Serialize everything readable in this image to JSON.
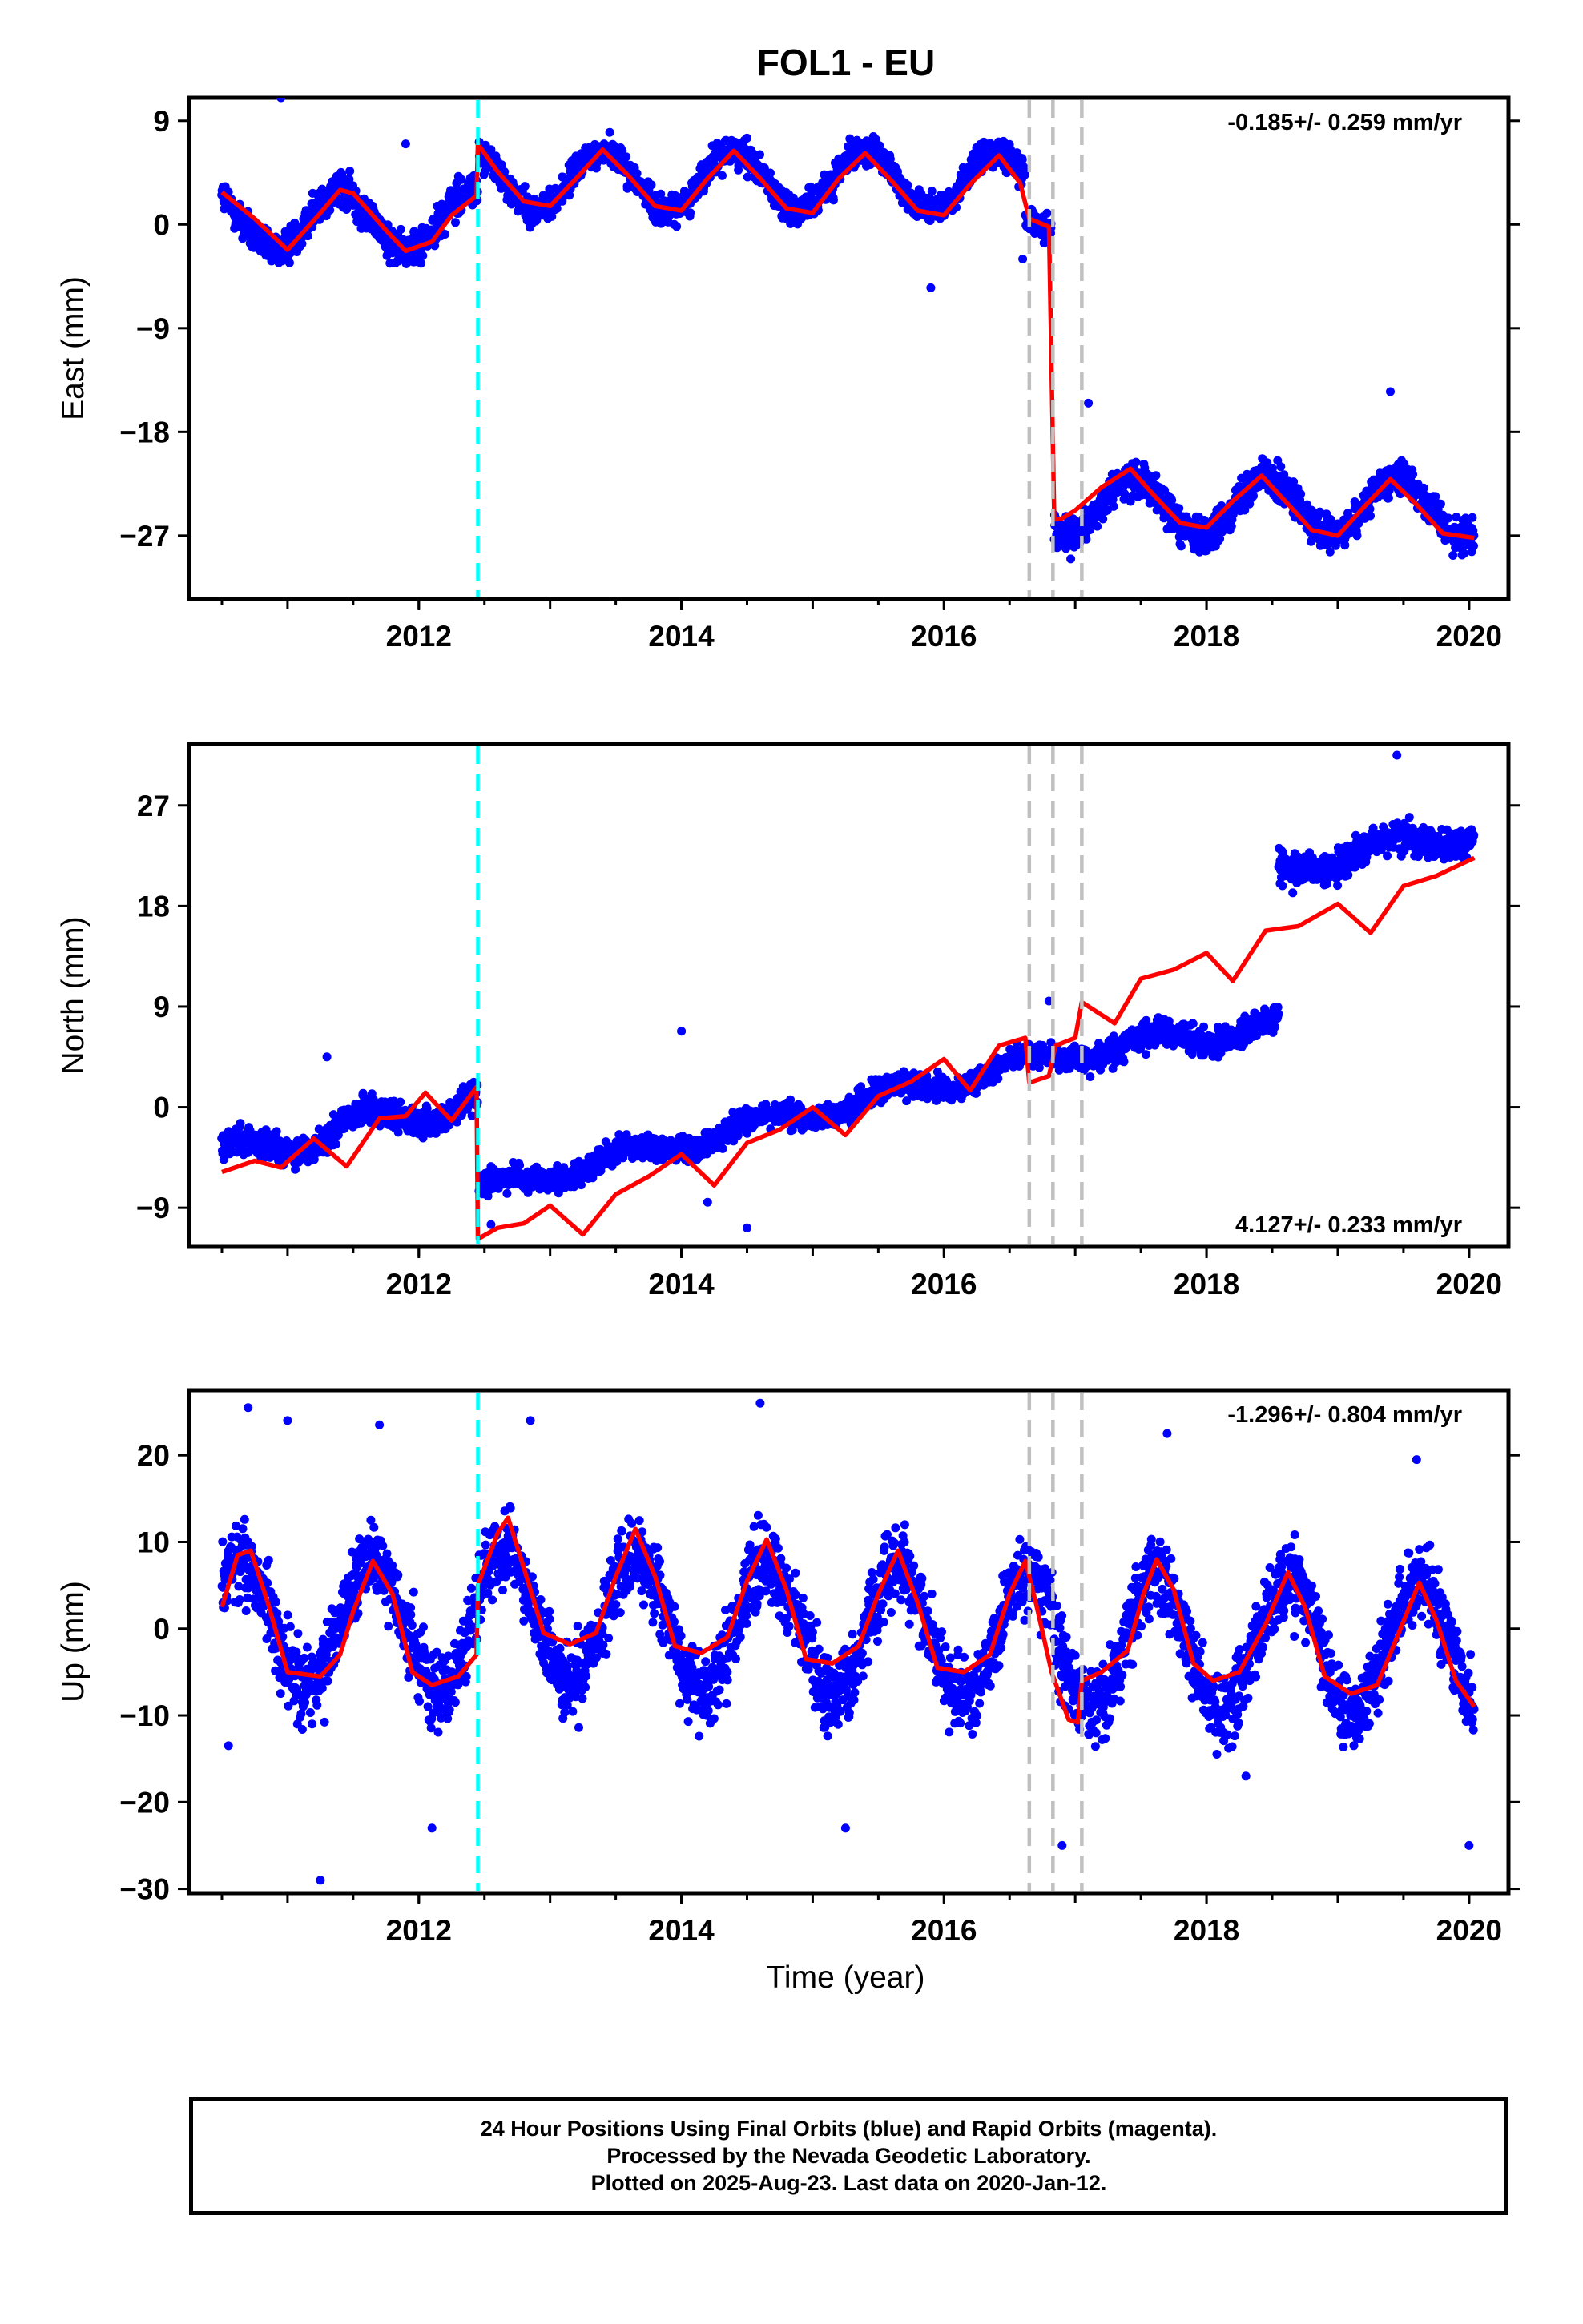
{
  "title": "FOL1 - EU",
  "colors": {
    "points": "#0000ff",
    "model": "#ff0000",
    "antenna_change": "#00ffff",
    "other_event": "#c0c0c0"
  },
  "footer": {
    "line1": "24 Hour Positions Using Final Orbits (blue) and Rapid Orbits (magenta).",
    "line2": "Processed by the Nevada Geodetic Laboratory.",
    "line3": "Plotted on 2025-Aug-23. Last data on 2020-Jan-12."
  },
  "chart_data": [
    {
      "type": "scatter",
      "ylabel": "East (mm)",
      "xlabel": "",
      "xlim": [
        2010.25,
        2020.3
      ],
      "ylim": [
        -32.5,
        11
      ],
      "yticks": [
        -27,
        -18,
        -9,
        0,
        9
      ],
      "xticks": [
        2012,
        2014,
        2016,
        2018,
        2020
      ],
      "rate_label": "-0.185+/- 0.259 mm/yr",
      "rate_position": "top-right",
      "events": [
        {
          "x": 2012.45,
          "kind": "antenna_change"
        },
        {
          "x": 2016.65,
          "kind": "other_event"
        },
        {
          "x": 2016.83,
          "kind": "other_event"
        },
        {
          "x": 2017.05,
          "kind": "other_event"
        }
      ],
      "series": [
        {
          "name": "Final Orbits",
          "kind": "points",
          "segments": [
            {
              "x0": 2010.5,
              "x1": 2012.45,
              "base": 0.3,
              "rate": 0.0,
              "amp": 2.6,
              "phase": 2011.4,
              "noise": 1.6
            },
            {
              "x0": 2012.46,
              "x1": 2016.62,
              "base": 3.8,
              "rate": 0.0,
              "amp": 2.6,
              "phase": 2013.4,
              "noise": 1.3
            },
            {
              "x0": 2016.62,
              "x1": 2016.82,
              "base": 0.2,
              "rate": 0.0,
              "amp": 0.5,
              "phase": 2016.4,
              "noise": 1.2
            },
            {
              "x0": 2016.84,
              "x1": 2020.04,
              "base": -24.5,
              "rate": 0.0,
              "amp": 2.6,
              "phase": 2017.45,
              "noise": 1.5
            }
          ],
          "outliers": [
            [
              2010.95,
              11.0
            ],
            [
              2011.9,
              7.0
            ],
            [
              2014.5,
              7.5
            ],
            [
              2015.9,
              -5.5
            ],
            [
              2017.1,
              -15.5
            ],
            [
              2019.4,
              -14.5
            ],
            [
              2016.6,
              -3.0
            ]
          ]
        },
        {
          "name": "Model",
          "kind": "line",
          "points": [
            [
              2010.5,
              2.8
            ],
            [
              2010.75,
              0.5
            ],
            [
              2011.0,
              -2.2
            ],
            [
              2011.25,
              1.0
            ],
            [
              2011.4,
              3.0
            ],
            [
              2011.5,
              2.7
            ],
            [
              2011.75,
              -0.5
            ],
            [
              2011.9,
              -2.3
            ],
            [
              2012.1,
              -1.5
            ],
            [
              2012.25,
              0.8
            ],
            [
              2012.44,
              2.5
            ],
            [
              2012.45,
              7.0
            ],
            [
              2012.6,
              4.6
            ],
            [
              2012.8,
              2.0
            ],
            [
              2013.0,
              1.6
            ],
            [
              2013.2,
              4.0
            ],
            [
              2013.4,
              6.5
            ],
            [
              2013.6,
              4.2
            ],
            [
              2013.8,
              1.6
            ],
            [
              2014.0,
              1.2
            ],
            [
              2014.2,
              4.0
            ],
            [
              2014.4,
              6.4
            ],
            [
              2014.6,
              4.0
            ],
            [
              2014.8,
              1.4
            ],
            [
              2015.0,
              1.0
            ],
            [
              2015.2,
              4.0
            ],
            [
              2015.4,
              6.2
            ],
            [
              2015.6,
              3.8
            ],
            [
              2015.8,
              1.2
            ],
            [
              2016.0,
              0.8
            ],
            [
              2016.2,
              3.5
            ],
            [
              2016.42,
              6.0
            ],
            [
              2016.58,
              3.6
            ],
            [
              2016.65,
              0.5
            ],
            [
              2016.8,
              -0.2
            ],
            [
              2016.84,
              -25.6
            ],
            [
              2016.9,
              -25.5
            ],
            [
              2017.0,
              -24.8
            ],
            [
              2017.2,
              -22.8
            ],
            [
              2017.42,
              -21.2
            ],
            [
              2017.6,
              -23.5
            ],
            [
              2017.8,
              -25.9
            ],
            [
              2018.0,
              -26.3
            ],
            [
              2018.2,
              -24.0
            ],
            [
              2018.42,
              -21.8
            ],
            [
              2018.6,
              -24.0
            ],
            [
              2018.8,
              -26.5
            ],
            [
              2019.0,
              -27.0
            ],
            [
              2019.2,
              -24.5
            ],
            [
              2019.4,
              -22.1
            ],
            [
              2019.6,
              -24.3
            ],
            [
              2019.8,
              -26.8
            ],
            [
              2020.04,
              -27.2
            ]
          ]
        }
      ]
    },
    {
      "type": "scatter",
      "ylabel": "North (mm)",
      "xlabel": "",
      "xlim": [
        2010.25,
        2020.3
      ],
      "ylim": [
        -12.5,
        32.5
      ],
      "yticks": [
        -9,
        0,
        9,
        18,
        27
      ],
      "xticks": [
        2012,
        2014,
        2016,
        2018,
        2020
      ],
      "rate_label": "4.127+/- 0.233 mm/yr",
      "rate_position": "bottom-right",
      "events": [
        {
          "x": 2012.45,
          "kind": "antenna_change"
        },
        {
          "x": 2016.65,
          "kind": "other_event"
        },
        {
          "x": 2016.83,
          "kind": "other_event"
        },
        {
          "x": 2017.05,
          "kind": "other_event"
        }
      ],
      "series": [
        {
          "name": "Final Orbits",
          "kind": "points",
          "segments": [
            {
              "x0": 2010.5,
              "x1": 2012.45,
              "base": -4.5,
              "rate": 2.7,
              "amp": 1.2,
              "phase": 2011.6,
              "noise": 1.3
            },
            {
              "x0": 2012.46,
              "x1": 2017.05,
              "base": -7.5,
              "rate": 2.75,
              "amp": 0.8,
              "phase": 2012.6,
              "noise": 1.1
            },
            {
              "x0": 2017.05,
              "x1": 2018.55,
              "base": 5.0,
              "rate": 1.6,
              "amp": 0.8,
              "phase": 2017.6,
              "noise": 1.3
            },
            {
              "x0": 2018.55,
              "x1": 2020.04,
              "base": 21.3,
              "rate": 2.2,
              "amp": 0.9,
              "phase": 2019.4,
              "noise": 1.5
            }
          ],
          "outliers": [
            [
              2011.3,
              4.5
            ],
            [
              2014.0,
              6.8
            ],
            [
              2014.2,
              -8.5
            ],
            [
              2014.5,
              -10.8
            ],
            [
              2019.45,
              31.5
            ],
            [
              2012.55,
              -10.5
            ],
            [
              2016.8,
              9.5
            ]
          ]
        },
        {
          "name": "Model",
          "kind": "line",
          "points": [
            [
              2010.5,
              -5.8
            ],
            [
              2010.75,
              -4.8
            ],
            [
              2010.95,
              -5.4
            ],
            [
              2011.2,
              -2.8
            ],
            [
              2011.45,
              -5.3
            ],
            [
              2011.7,
              -1.0
            ],
            [
              2011.9,
              -0.8
            ],
            [
              2012.05,
              1.3
            ],
            [
              2012.25,
              -1.2
            ],
            [
              2012.44,
              1.8
            ],
            [
              2012.45,
              -11.8
            ],
            [
              2012.6,
              -10.8
            ],
            [
              2012.8,
              -10.4
            ],
            [
              2013.0,
              -8.8
            ],
            [
              2013.25,
              -11.4
            ],
            [
              2013.5,
              -7.8
            ],
            [
              2013.75,
              -6.2
            ],
            [
              2014.0,
              -4.2
            ],
            [
              2014.25,
              -7.0
            ],
            [
              2014.5,
              -3.2
            ],
            [
              2014.75,
              -2.0
            ],
            [
              2015.0,
              0.0
            ],
            [
              2015.25,
              -2.5
            ],
            [
              2015.5,
              1.0
            ],
            [
              2015.75,
              2.3
            ],
            [
              2016.0,
              4.3
            ],
            [
              2016.2,
              1.5
            ],
            [
              2016.42,
              5.5
            ],
            [
              2016.62,
              6.2
            ],
            [
              2016.65,
              2.2
            ],
            [
              2016.8,
              2.8
            ],
            [
              2016.85,
              5.5
            ],
            [
              2017.0,
              6.2
            ],
            [
              2017.05,
              9.4
            ],
            [
              2017.3,
              7.5
            ],
            [
              2017.5,
              11.5
            ],
            [
              2017.75,
              12.3
            ],
            [
              2018.0,
              13.8
            ],
            [
              2018.2,
              11.3
            ],
            [
              2018.45,
              15.8
            ],
            [
              2018.7,
              16.2
            ],
            [
              2019.0,
              18.2
            ],
            [
              2019.25,
              15.6
            ],
            [
              2019.5,
              19.8
            ],
            [
              2019.75,
              20.7
            ],
            [
              2020.04,
              22.3
            ]
          ]
        }
      ]
    },
    {
      "type": "scatter",
      "ylabel": "Up (mm)",
      "xlabel": "Time (year)",
      "xlim": [
        2010.25,
        2020.3
      ],
      "ylim": [
        -30.5,
        27.5
      ],
      "yticks": [
        -30,
        -20,
        -10,
        0,
        10,
        20
      ],
      "xticks": [
        2012,
        2014,
        2016,
        2018,
        2020
      ],
      "rate_label": "-1.296+/- 0.804 mm/yr",
      "rate_position": "top-right",
      "events": [
        {
          "x": 2012.45,
          "kind": "antenna_change"
        },
        {
          "x": 2016.65,
          "kind": "other_event"
        },
        {
          "x": 2016.83,
          "kind": "other_event"
        },
        {
          "x": 2017.05,
          "kind": "other_event"
        }
      ],
      "series": [
        {
          "name": "Final Orbits",
          "kind": "points",
          "segments": [
            {
              "x0": 2010.5,
              "x1": 2012.45,
              "base": 0.5,
              "rate": 0.0,
              "amp": 7.5,
              "phase": 2010.65,
              "noise": 4.5
            },
            {
              "x0": 2012.46,
              "x1": 2016.83,
              "base": 1.5,
              "rate": -0.6,
              "amp": 7.5,
              "phase": 2012.65,
              "noise": 4.5
            },
            {
              "x0": 2016.84,
              "x1": 2020.04,
              "base": -1.5,
              "rate": -0.3,
              "amp": 7.5,
              "phase": 2017.62,
              "noise": 4.5
            }
          ],
          "outliers": [
            [
              2010.55,
              -13.5
            ],
            [
              2010.7,
              25.5
            ],
            [
              2011.0,
              24.0
            ],
            [
              2011.25,
              -29.0
            ],
            [
              2011.7,
              23.5
            ],
            [
              2012.1,
              -23.0
            ],
            [
              2012.85,
              24.0
            ],
            [
              2014.6,
              26.0
            ],
            [
              2015.25,
              -23.0
            ],
            [
              2016.9,
              -25.0
            ],
            [
              2017.7,
              22.5
            ],
            [
              2019.6,
              19.5
            ],
            [
              2020.0,
              -25.0
            ],
            [
              2018.3,
              -17.0
            ]
          ]
        },
        {
          "name": "Model",
          "kind": "line",
          "points": [
            [
              2010.5,
              2.5
            ],
            [
              2010.62,
              8.5
            ],
            [
              2010.72,
              9.0
            ],
            [
              2010.85,
              3.0
            ],
            [
              2011.0,
              -5.0
            ],
            [
              2011.25,
              -5.5
            ],
            [
              2011.4,
              -3.0
            ],
            [
              2011.5,
              2.0
            ],
            [
              2011.65,
              7.8
            ],
            [
              2011.8,
              4.0
            ],
            [
              2011.95,
              -5.0
            ],
            [
              2012.1,
              -6.5
            ],
            [
              2012.3,
              -5.5
            ],
            [
              2012.44,
              -3.0
            ],
            [
              2012.45,
              5.0
            ],
            [
              2012.6,
              11.0
            ],
            [
              2012.68,
              12.8
            ],
            [
              2012.8,
              7.0
            ],
            [
              2012.95,
              -0.5
            ],
            [
              2013.15,
              -1.8
            ],
            [
              2013.35,
              -0.5
            ],
            [
              2013.5,
              6.0
            ],
            [
              2013.65,
              11.5
            ],
            [
              2013.8,
              6.0
            ],
            [
              2013.95,
              -2.0
            ],
            [
              2014.15,
              -2.8
            ],
            [
              2014.35,
              -1.0
            ],
            [
              2014.5,
              5.5
            ],
            [
              2014.65,
              10.3
            ],
            [
              2014.8,
              4.5
            ],
            [
              2014.95,
              -3.5
            ],
            [
              2015.15,
              -4.0
            ],
            [
              2015.35,
              -2.0
            ],
            [
              2015.5,
              4.0
            ],
            [
              2015.65,
              9.0
            ],
            [
              2015.8,
              3.0
            ],
            [
              2015.95,
              -4.5
            ],
            [
              2016.15,
              -5.0
            ],
            [
              2016.35,
              -3.0
            ],
            [
              2016.5,
              4.0
            ],
            [
              2016.62,
              7.8
            ],
            [
              2016.7,
              3.0
            ],
            [
              2016.82,
              -5.0
            ],
            [
              2016.95,
              -10.5
            ],
            [
              2017.02,
              -10.8
            ],
            [
              2017.05,
              -6.0
            ],
            [
              2017.2,
              -5.0
            ],
            [
              2017.4,
              -2.5
            ],
            [
              2017.52,
              4.0
            ],
            [
              2017.62,
              8.0
            ],
            [
              2017.75,
              4.5
            ],
            [
              2017.9,
              -4.0
            ],
            [
              2018.05,
              -6.0
            ],
            [
              2018.25,
              -5.0
            ],
            [
              2018.45,
              0.5
            ],
            [
              2018.62,
              6.5
            ],
            [
              2018.75,
              2.5
            ],
            [
              2018.9,
              -5.5
            ],
            [
              2019.1,
              -7.5
            ],
            [
              2019.3,
              -6.5
            ],
            [
              2019.45,
              -1.0
            ],
            [
              2019.62,
              5.3
            ],
            [
              2019.75,
              1.0
            ],
            [
              2019.9,
              -6.0
            ],
            [
              2020.04,
              -9.0
            ]
          ]
        }
      ]
    }
  ]
}
